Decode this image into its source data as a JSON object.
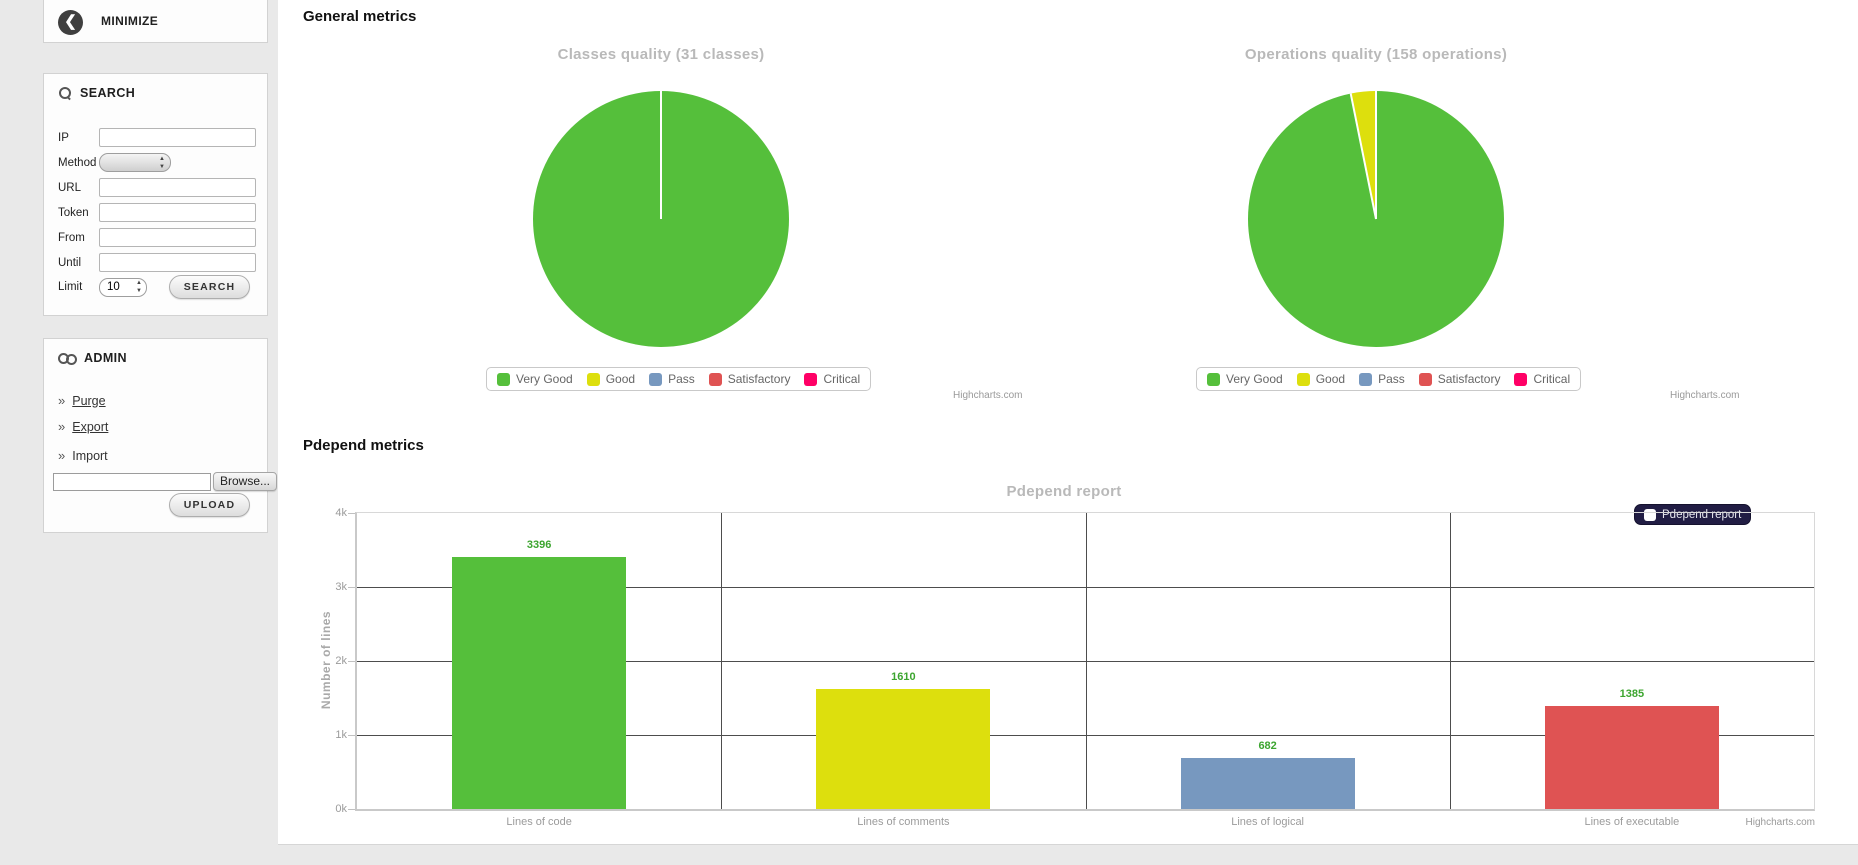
{
  "sidebar": {
    "minimize_label": "MINIMIZE",
    "search": {
      "title": "SEARCH",
      "fields": [
        {
          "label": "IP"
        },
        {
          "label": "Method"
        },
        {
          "label": "URL"
        },
        {
          "label": "Token"
        },
        {
          "label": "From"
        },
        {
          "label": "Until"
        },
        {
          "label": "Limit"
        }
      ],
      "limit_value": "10",
      "search_button": "SEARCH"
    },
    "admin": {
      "title": "ADMIN",
      "bullet": "»",
      "links": [
        {
          "label": "Purge"
        },
        {
          "label": "Export"
        },
        {
          "label": "Import"
        }
      ],
      "browse_button": "Browse...",
      "upload_button": "UPLOAD"
    }
  },
  "main": {
    "general_heading": "General metrics",
    "pdepend_heading": "Pdepend metrics",
    "credits": "Highcharts.com"
  },
  "colors": {
    "very_good": "#55BF3B",
    "good": "#DDDF0D",
    "pass": "#7798BF",
    "satisfactory": "#DF5353",
    "critical": "#FF0066",
    "value_label": "#3CA52F"
  },
  "chart_data": [
    {
      "type": "pie",
      "title": "Classes quality (31 classes)",
      "legend_position": "bottom",
      "series": [
        {
          "name": "Very Good",
          "value": 31,
          "color": "#55BF3B"
        },
        {
          "name": "Good",
          "value": 0,
          "color": "#DDDF0D"
        },
        {
          "name": "Pass",
          "value": 0,
          "color": "#7798BF"
        },
        {
          "name": "Satisfactory",
          "value": 0,
          "color": "#DF5353"
        },
        {
          "name": "Critical",
          "value": 0,
          "color": "#FF0066"
        }
      ]
    },
    {
      "type": "pie",
      "title": "Operations quality (158 operations)",
      "legend_position": "bottom",
      "series": [
        {
          "name": "Very Good",
          "value": 153,
          "color": "#55BF3B"
        },
        {
          "name": "Good",
          "value": 5,
          "color": "#DDDF0D"
        },
        {
          "name": "Pass",
          "value": 0,
          "color": "#7798BF"
        },
        {
          "name": "Satisfactory",
          "value": 0,
          "color": "#DF5353"
        },
        {
          "name": "Critical",
          "value": 0,
          "color": "#FF0066"
        }
      ]
    },
    {
      "type": "bar",
      "title": "Pdepend report",
      "legend_label": "Pdepend report",
      "categories": [
        "Lines of code",
        "Lines of comments",
        "Lines of logical",
        "Lines of executable"
      ],
      "values": [
        3396,
        1610,
        682,
        1385
      ],
      "bar_colors": [
        "#55BF3B",
        "#DDDF0D",
        "#7798BF",
        "#DF5353"
      ],
      "ylabel": "Number of lines",
      "yticks": [
        "0k",
        "1k",
        "2k",
        "3k",
        "4k"
      ],
      "ylim": [
        0,
        4000
      ],
      "grid": true
    }
  ]
}
